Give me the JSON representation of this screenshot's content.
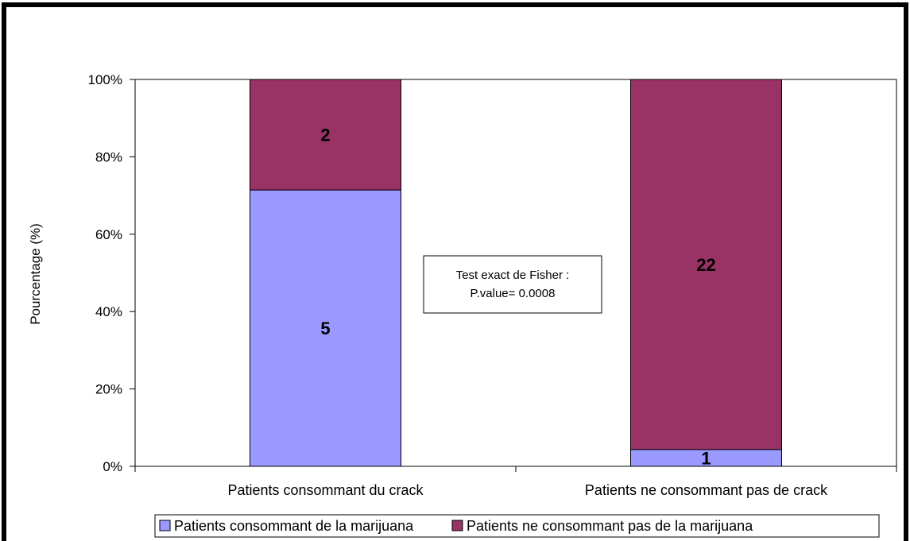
{
  "chart_data": {
    "type": "bar",
    "stacked": true,
    "normalized": true,
    "categories": [
      "Patients consommant du crack",
      "Patients ne consommant pas de crack"
    ],
    "series": [
      {
        "name": "Patients consommant de la marijuana",
        "values": [
          5,
          1
        ],
        "color": "#9999ff"
      },
      {
        "name": "Patients ne consommant pas de la marijuana",
        "values": [
          2,
          22
        ],
        "color": "#993366"
      }
    ],
    "ylabel": "Pourcentage (%)",
    "ylim": [
      0,
      100
    ],
    "yticks": [
      "0%",
      "20%",
      "40%",
      "60%",
      "80%",
      "100%"
    ],
    "grid": false,
    "legend": "bottom",
    "annotation": {
      "line1": "Test exact de Fisher :",
      "line2": "P.value= 0.0008"
    }
  }
}
